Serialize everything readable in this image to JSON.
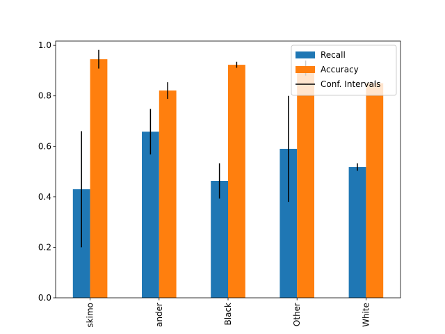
{
  "chart_data": {
    "type": "bar",
    "categories": [
      "skimo",
      "ander",
      "Black",
      "Other",
      "White"
    ],
    "series": [
      {
        "name": "Recall",
        "color": "#1f77b4",
        "values": [
          0.43,
          0.658,
          0.463,
          0.59,
          0.518
        ],
        "errors": [
          0.23,
          0.09,
          0.07,
          0.21,
          0.015
        ]
      },
      {
        "name": "Accuracy",
        "color": "#ff7f0e",
        "values": [
          0.945,
          0.821,
          0.923,
          0.91,
          0.85
        ],
        "errors": [
          0.037,
          0.033,
          0.012,
          0.03,
          0.01
        ]
      }
    ],
    "error_label": "Conf. Intervals",
    "error_color": "#000000",
    "ylim": [
      0,
      1.017
    ],
    "yticks": [
      {
        "value": 0,
        "label": "0.0"
      },
      0.2,
      0.4,
      0.6,
      0.8,
      {
        "value": 1,
        "label": "1.0"
      }
    ],
    "legend": "upper right"
  }
}
